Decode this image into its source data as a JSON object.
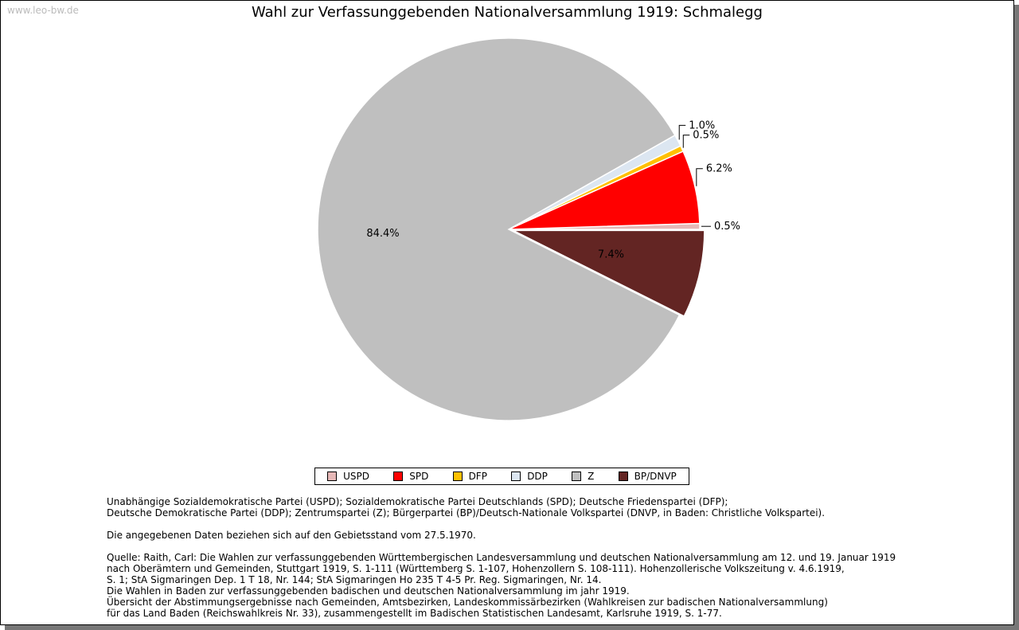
{
  "watermark": "www.leo-bw.de",
  "chart_data": {
    "type": "pie",
    "title": "Wahl zur Verfassunggebenden Nationalversammlung 1919: Schmalegg",
    "slices": [
      {
        "label": "USPD",
        "value": 0.5,
        "display": "0.5%",
        "color": "#e6b8b7"
      },
      {
        "label": "SPD",
        "value": 6.2,
        "display": "6.2%",
        "color": "#ff0000"
      },
      {
        "label": "DFP",
        "value": 0.5,
        "display": "0.5%",
        "color": "#ffc000"
      },
      {
        "label": "DDP",
        "value": 1.0,
        "display": "1.0%",
        "color": "#dce6f1"
      },
      {
        "label": "Z",
        "value": 84.4,
        "display": "84.4%",
        "color": "#bfbfbf"
      },
      {
        "label": "BP/DNVP",
        "value": 7.4,
        "display": "7.4%",
        "color": "#632523"
      }
    ],
    "legend_position": "bottom"
  },
  "notes": {
    "abbrev": [
      "Unabhängige Sozialdemokratische Partei (USPD); Sozialdemokratische Partei Deutschlands (SPD); Deutsche Friedenspartei (DFP);",
      "Deutsche Demokratische Partei (DDP); Zentrumspartei (Z); Bürgerpartei (BP)/Deutsch-Nationale Volkspartei (DNVP, in Baden: Christliche Volkspartei)."
    ],
    "territory": "Die angegebenen Daten beziehen sich auf den Gebietsstand vom 27.5.1970.",
    "source": [
      "Quelle: Raith, Carl: Die Wahlen zur verfassunggebenden Württembergischen Landesversammlung und deutschen Nationalversammlung am 12. und 19. Januar 1919",
      "nach Oberämtern und Gemeinden, Stuttgart 1919, S. 1-111 (Württemberg S. 1-107, Hohenzollern S. 108-111). Hohenzollerische Volkszeitung v. 4.6.1919,",
      "S. 1; StA Sigmaringen Dep. 1 T 18, Nr. 144; StA Sigmaringen Ho 235 T 4-5 Pr. Reg. Sigmaringen, Nr. 14.",
      "Die Wahlen in Baden zur verfassunggebenden badischen und deutschen Nationalversammlung im jahr 1919.",
      "Übersicht der Abstimmungsergebnisse nach Gemeinden, Amtsbezirken, Landeskommissärbezirken (Wahlkreisen zur badischen Nationalversammlung)",
      "für das Land Baden (Reichswahlkreis Nr. 33), zusammengestellt im Badischen Statistischen Landesamt, Karlsruhe 1919, S. 1-77."
    ]
  }
}
